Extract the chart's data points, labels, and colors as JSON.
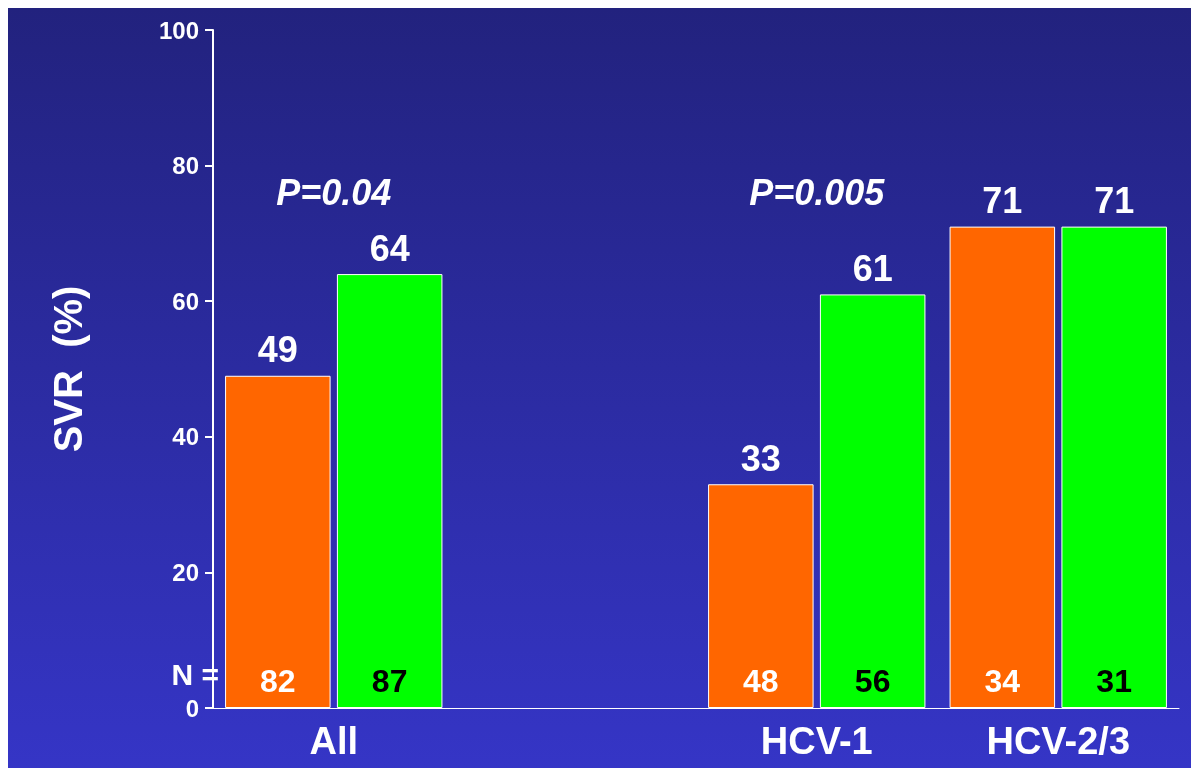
{
  "chart_data": {
    "type": "bar",
    "ylabel": "SVR  (%)",
    "categories": [
      "All",
      null,
      "HCV-1",
      "HCV-2/3"
    ],
    "series": [
      {
        "color": "#ff6600",
        "values": [
          49,
          null,
          33,
          71
        ]
      },
      {
        "color": "#00ff00",
        "values": [
          64,
          null,
          61,
          71
        ]
      }
    ],
    "ylim": [
      0,
      100
    ],
    "yticks": [
      0,
      20,
      40,
      60,
      80,
      100
    ],
    "grid": false,
    "data_labels": true,
    "annotations": [
      "P=0.04",
      "P=0.005",
      "N =",
      {
        "text": "82",
        "x": "All",
        "y": 4
      },
      {
        "text": "87",
        "x": "All",
        "y": 4
      },
      {
        "text": "48",
        "x": "HCV-1",
        "y": 4
      },
      {
        "text": "56",
        "x": "HCV-1",
        "y": 4
      },
      {
        "text": "34",
        "x": "HCV-2/3",
        "y": 4
      },
      {
        "text": "31",
        "x": "HCV-2/3",
        "y": 4
      }
    ]
  }
}
